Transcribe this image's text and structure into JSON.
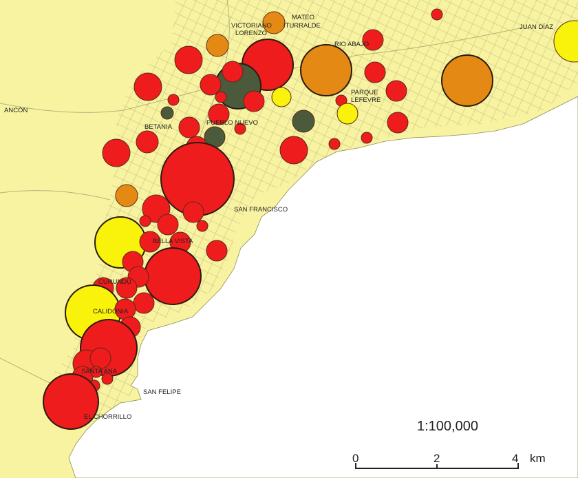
{
  "place_labels": {
    "ancon": "ANCÓN",
    "victoriano_lorenzo": [
      "VICTORIANO",
      "LORENZO"
    ],
    "mateo_iturralde": [
      "MATEO",
      "ITURRALDE"
    ],
    "rio_abajo": "RIO ABAJO",
    "juan_diaz": "JUAN DÍAZ",
    "parque_lefevre": [
      "PARQUE",
      "LEFEVRE"
    ],
    "betania": "BETANIA",
    "pueblo_nuevo": "PUEBLO NUEVO",
    "san_francisco": "SAN FRANCISCO",
    "bella_vista": "BELLA VISTA",
    "curundu": "CURUNDÚ",
    "calidonia": "CALIDONIA",
    "santa_ana": "SANTA ANA",
    "san_felipe": "SAN FELIPE",
    "el_chorrillo": "EL CHORRILLO"
  },
  "scale": {
    "ratio": "1:100,000",
    "ticks": [
      "0",
      "2",
      "4"
    ],
    "unit": "km"
  },
  "colors": {
    "land": "#f7f3a0",
    "sea": "#ffffff",
    "red": "#ee1c1c",
    "orange": "#e48a14",
    "yellow": "#f9f20a",
    "dark_green": "#4c5a3c"
  }
}
